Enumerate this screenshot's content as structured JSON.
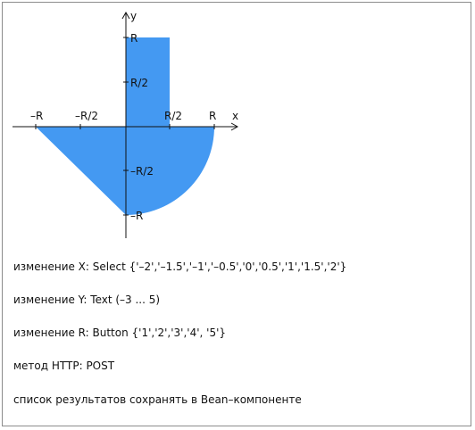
{
  "diagram": {
    "region_color": "#4499f2",
    "axis_color": "#111111",
    "axis_labels": {
      "x": "x",
      "y": "y"
    },
    "x_ticks": [
      "–R",
      "–R/2",
      "R/2",
      "R"
    ],
    "y_ticks": [
      "R",
      "R/2",
      "–R/2",
      "–R"
    ]
  },
  "info": {
    "line1": "изменение X: Select {'–2','–1.5','–1','–0.5','0','0.5','1','1.5','2'}",
    "line2": "изменение Y: Text (–3 ... 5)",
    "line3": "изменение R: Button {'1','2','3','4', '5'}",
    "line4": "метод HTTP: POST",
    "line5": "список результатов сохранять в Bean–компоненте"
  }
}
